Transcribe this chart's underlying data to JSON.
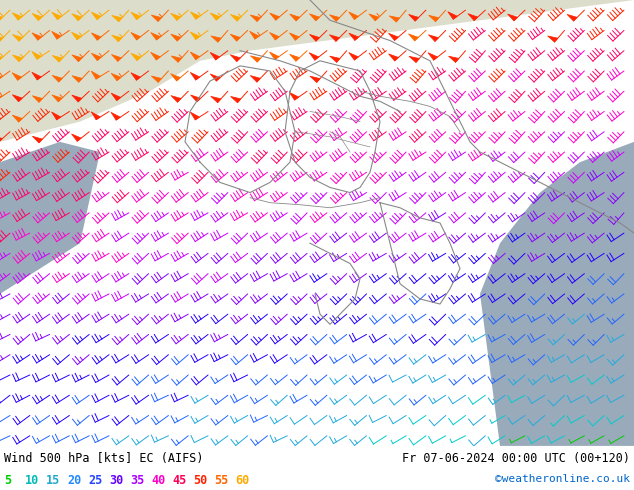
{
  "title_left": "Wind 500 hPa [kts] EC (AIFS)",
  "title_right": "Fr 07-06-2024 00:00 UTC (00+120)",
  "credit": "©weatheronline.co.uk",
  "legend_values": [
    5,
    10,
    15,
    20,
    25,
    30,
    35,
    40,
    45,
    50,
    55,
    60
  ],
  "legend_colors": [
    "#00cc00",
    "#00cccc",
    "#22bbcc",
    "#22aaff",
    "#2255ff",
    "#2200ff",
    "#9900ff",
    "#cc00ff",
    "#ff00bb",
    "#ff2200",
    "#ff6600",
    "#ffaa00"
  ],
  "land_color": "#aaccaa",
  "sea_color": "#aabbdd",
  "white_area_color": "#e8e8e8",
  "bottom_bar_color": "#ffffff",
  "bottom_text_color": "#000000",
  "fig_width": 6.34,
  "fig_height": 4.9,
  "dpi": 100
}
